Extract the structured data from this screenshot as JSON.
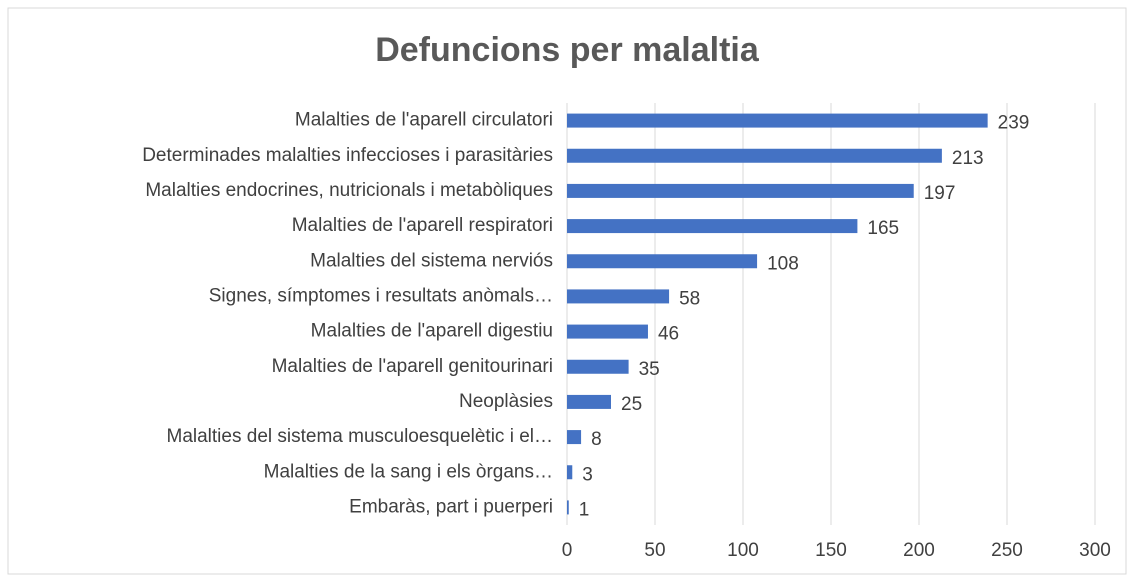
{
  "chart_data": {
    "type": "bar",
    "orientation": "horizontal",
    "title": "Defuncions per malaltia",
    "categories": [
      "Malalties de l'aparell circulatori",
      "Determinades malalties infeccioses i parasitàries",
      "Malalties endocrines, nutricionals i metabòliques",
      "Malalties de l'aparell respiratori",
      "Malalties del sistema nerviós",
      "Signes, símptomes i resultats anòmals…",
      "Malalties de l'aparell digestiu",
      "Malalties de l'aparell genitourinari",
      "Neoplàsies",
      "Malalties del sistema musculoesquelètic i el…",
      "Malalties de la sang i els òrgans…",
      "Embaràs, part i puerperi"
    ],
    "values": [
      239,
      213,
      197,
      165,
      108,
      58,
      46,
      35,
      25,
      8,
      3,
      1
    ],
    "color": "#4472c4",
    "xlim": [
      0,
      300
    ],
    "xticks": [
      0,
      50,
      100,
      150,
      200,
      250,
      300
    ],
    "grid": true
  }
}
